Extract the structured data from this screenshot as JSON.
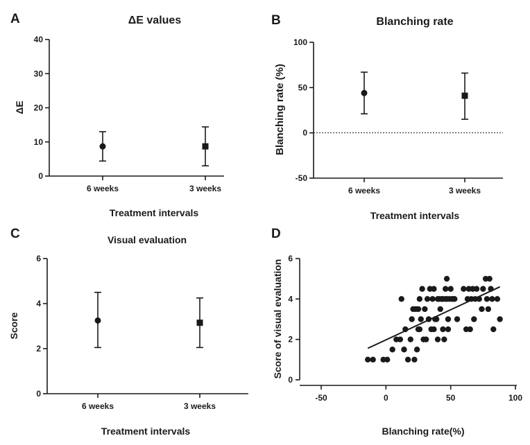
{
  "chart_data": [
    {
      "panel": "A",
      "type": "scatter",
      "title": "ΔE values",
      "xlabel": "Treatment intervals",
      "ylabel": "ΔE",
      "categories": [
        "6 weeks",
        "3 weeks"
      ],
      "ylim": [
        0,
        40
      ],
      "yticks": [
        0,
        10,
        20,
        30,
        40
      ],
      "series": [
        {
          "category": "6 weeks",
          "mean": 8.7,
          "lower": 4.4,
          "upper": 13.0,
          "marker": "circle"
        },
        {
          "category": "3 weeks",
          "mean": 8.7,
          "lower": 3.0,
          "upper": 14.4,
          "marker": "square"
        }
      ],
      "zero_line": false
    },
    {
      "panel": "B",
      "type": "scatter",
      "title": "Blanching rate",
      "xlabel": "Treatment intervals",
      "ylabel": "Blanching rate (%)",
      "categories": [
        "6 weeks",
        "3 weeks"
      ],
      "ylim": [
        -50,
        100
      ],
      "yticks": [
        -50,
        0,
        50,
        100
      ],
      "series": [
        {
          "category": "6 weeks",
          "mean": 44,
          "lower": 21,
          "upper": 67,
          "marker": "circle"
        },
        {
          "category": "3 weeks",
          "mean": 41,
          "lower": 15,
          "upper": 66,
          "marker": "square"
        }
      ],
      "zero_line": true
    },
    {
      "panel": "C",
      "type": "scatter",
      "title": "Visual evaluation",
      "xlabel": "Treatment intervals",
      "ylabel": "Score",
      "categories": [
        "6 weeks",
        "3 weeks"
      ],
      "ylim": [
        0,
        6
      ],
      "yticks": [
        0,
        2,
        4,
        6
      ],
      "series": [
        {
          "category": "6 weeks",
          "mean": 3.25,
          "lower": 2.05,
          "upper": 4.5,
          "marker": "circle"
        },
        {
          "category": "3 weeks",
          "mean": 3.15,
          "lower": 2.05,
          "upper": 4.25,
          "marker": "square"
        }
      ],
      "zero_line": false
    },
    {
      "panel": "D",
      "type": "scatter",
      "title": "",
      "xlabel": "Blanching rate(%)",
      "ylabel": "Score of visual evaluation",
      "xlim": [
        -50,
        100
      ],
      "xticks": [
        -50,
        0,
        50,
        100
      ],
      "ylim": [
        0,
        6
      ],
      "yticks": [
        0,
        2,
        4,
        6
      ],
      "points": [
        [
          -14,
          1
        ],
        [
          -10,
          1
        ],
        [
          -2,
          1
        ],
        [
          1,
          1
        ],
        [
          5,
          1.5
        ],
        [
          8,
          2
        ],
        [
          11,
          2
        ],
        [
          12,
          4
        ],
        [
          14,
          1.5
        ],
        [
          15,
          2.5
        ],
        [
          17,
          1
        ],
        [
          19,
          2
        ],
        [
          20,
          3
        ],
        [
          21,
          3.5
        ],
        [
          22,
          1
        ],
        [
          23,
          3.5
        ],
        [
          24,
          1.5
        ],
        [
          25,
          3.5
        ],
        [
          25,
          2.5
        ],
        [
          26,
          4
        ],
        [
          26,
          2.5
        ],
        [
          27,
          3
        ],
        [
          28,
          4.5
        ],
        [
          29,
          2
        ],
        [
          30,
          3.5
        ],
        [
          31,
          2
        ],
        [
          32,
          4
        ],
        [
          33,
          3
        ],
        [
          34,
          4.5
        ],
        [
          35,
          2.5
        ],
        [
          36,
          4
        ],
        [
          37,
          4.5
        ],
        [
          37,
          2.5
        ],
        [
          38,
          3
        ],
        [
          39,
          3
        ],
        [
          40,
          4
        ],
        [
          40,
          2
        ],
        [
          41,
          4
        ],
        [
          42,
          3.5
        ],
        [
          43,
          4
        ],
        [
          44,
          2.5
        ],
        [
          44,
          4
        ],
        [
          45,
          2
        ],
        [
          46,
          4.5
        ],
        [
          46,
          4
        ],
        [
          47,
          4
        ],
        [
          47,
          5
        ],
        [
          48,
          3
        ],
        [
          48,
          2.5
        ],
        [
          49,
          4
        ],
        [
          50,
          4.5
        ],
        [
          51,
          4
        ],
        [
          52,
          4
        ],
        [
          53,
          4
        ],
        [
          55,
          3
        ],
        [
          60,
          4.5
        ],
        [
          62,
          2.5
        ],
        [
          63,
          4
        ],
        [
          64,
          4.5
        ],
        [
          65,
          2.5
        ],
        [
          66,
          4
        ],
        [
          67,
          4.5
        ],
        [
          68,
          3
        ],
        [
          69,
          4
        ],
        [
          70,
          4.5
        ],
        [
          72,
          4
        ],
        [
          74,
          3.5
        ],
        [
          75,
          4.5
        ],
        [
          77,
          5
        ],
        [
          78,
          4
        ],
        [
          79,
          3.5
        ],
        [
          80,
          5
        ],
        [
          81,
          4.5
        ],
        [
          82,
          4
        ],
        [
          83,
          2.5
        ],
        [
          86,
          4
        ],
        [
          88,
          3
        ]
      ],
      "trendline": {
        "from": [
          -14,
          1.56
        ],
        "to": [
          88,
          4.6
        ]
      }
    }
  ]
}
